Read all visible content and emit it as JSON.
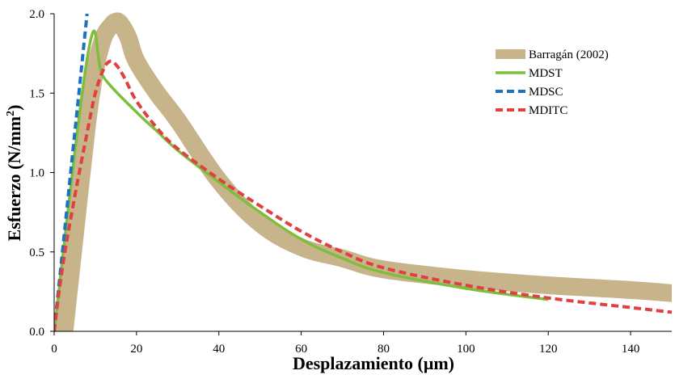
{
  "chart_data": {
    "type": "line",
    "xlabel": "Desplazamiento (μm)",
    "ylabel_main": "Esfuerzo (N/mm",
    "ylabel_sup": "2",
    "ylabel_close": ")",
    "xlim": [
      0,
      150
    ],
    "ylim": [
      0,
      2.0
    ],
    "x_ticks": [
      0,
      20,
      40,
      60,
      80,
      100,
      120,
      140
    ],
    "y_ticks": [
      "0.0",
      "0.5",
      "1.0",
      "1.5",
      "2.0"
    ],
    "y_tick_values": [
      0,
      0.5,
      1.0,
      1.5,
      2.0
    ],
    "grid": false,
    "legend_position": "top-right",
    "series": [
      {
        "name": "Barragán (2002)",
        "color": "#C8B48A",
        "style": "solid-thick",
        "x": [
          2.5,
          5,
          8,
          10,
          12,
          14,
          15,
          16,
          18,
          20,
          25,
          30,
          40,
          50,
          60,
          70,
          80,
          100,
          120,
          140,
          150
        ],
        "y": [
          0,
          0.6,
          1.3,
          1.65,
          1.85,
          1.93,
          1.95,
          1.94,
          1.85,
          1.7,
          1.5,
          1.33,
          0.95,
          0.68,
          0.53,
          0.46,
          0.39,
          0.33,
          0.29,
          0.26,
          0.24
        ]
      },
      {
        "name": "MDST",
        "color": "#7DBE3C",
        "style": "solid",
        "x": [
          0,
          8.5,
          12,
          20,
          25,
          30,
          40,
          50,
          60,
          70,
          80,
          100,
          120
        ],
        "y": [
          0,
          1.79,
          1.6,
          1.38,
          1.26,
          1.14,
          0.94,
          0.75,
          0.58,
          0.46,
          0.37,
          0.27,
          0.2
        ]
      },
      {
        "name": "MDSC",
        "color": "#1E73BE",
        "style": "dashed",
        "x": [
          0,
          2,
          4,
          6,
          8
        ],
        "y": [
          0,
          0.5,
          1.0,
          1.5,
          2.0
        ]
      },
      {
        "name": "MDITC",
        "color": "#E04040",
        "style": "dashed",
        "x": [
          0,
          2,
          5,
          8,
          10,
          12,
          13.5,
          15,
          17,
          20,
          25,
          30,
          40,
          50,
          60,
          70,
          80,
          100,
          120,
          140,
          150
        ],
        "y": [
          0,
          0.4,
          0.85,
          1.25,
          1.5,
          1.65,
          1.7,
          1.68,
          1.6,
          1.45,
          1.28,
          1.15,
          0.96,
          0.79,
          0.63,
          0.5,
          0.4,
          0.29,
          0.21,
          0.15,
          0.12
        ]
      }
    ]
  }
}
